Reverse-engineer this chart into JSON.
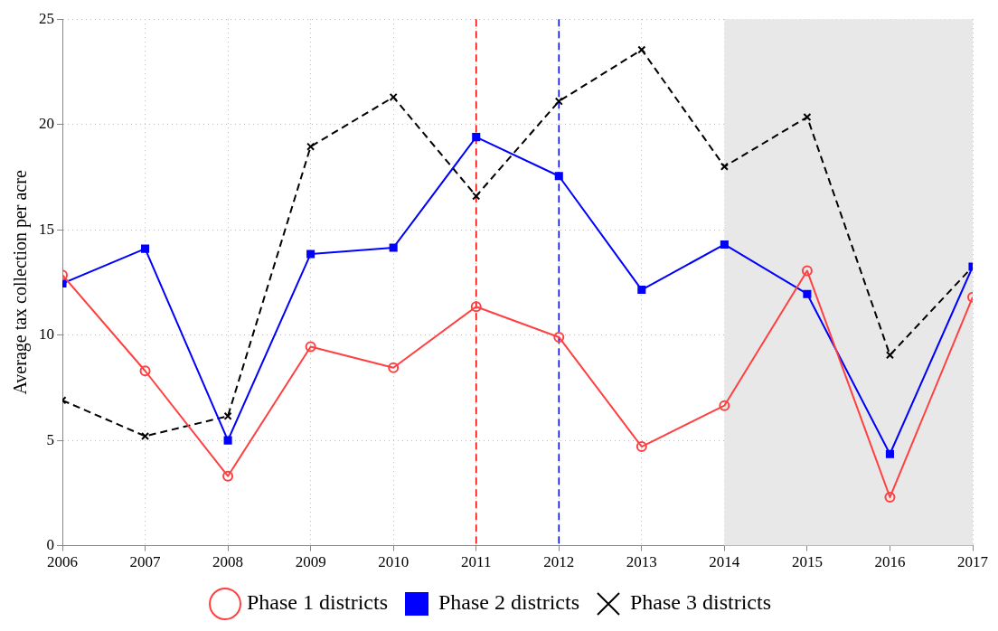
{
  "chart_data": {
    "type": "line",
    "ylabel": "Average tax collection per acre",
    "x": [
      2006,
      2007,
      2008,
      2009,
      2010,
      2011,
      2012,
      2013,
      2014,
      2015,
      2016,
      2017
    ],
    "xlim": [
      2006,
      2017
    ],
    "xticks": [
      2006,
      2007,
      2008,
      2009,
      2010,
      2011,
      2012,
      2013,
      2014,
      2015,
      2016,
      2017
    ],
    "ylim": [
      0,
      25
    ],
    "yticks": [
      0,
      5,
      10,
      15,
      20,
      25
    ],
    "grid": true,
    "legend": "bottom",
    "series": [
      {
        "name": "Phase 1 districts",
        "color": "#ff4040",
        "marker": "circle",
        "line_style": "solid",
        "values": [
          12.85,
          8.3,
          3.3,
          9.45,
          8.45,
          11.35,
          9.9,
          4.7,
          6.65,
          13.05,
          2.3,
          11.8
        ]
      },
      {
        "name": "Phase 2 districts",
        "color": "#0000ff",
        "marker": "square",
        "line_style": "solid",
        "values": [
          12.45,
          14.1,
          5.0,
          13.85,
          14.15,
          19.4,
          17.55,
          12.15,
          14.3,
          11.95,
          4.35,
          13.25
        ]
      },
      {
        "name": "Phase 3 districts",
        "color": "#000000",
        "marker": "cross",
        "line_style": "dashed",
        "values": [
          6.9,
          5.2,
          6.15,
          18.95,
          21.3,
          16.6,
          21.1,
          23.55,
          18.0,
          20.35,
          9.05,
          13.25
        ]
      }
    ],
    "ref_lines": [
      {
        "axis": "x",
        "value": 2011,
        "color": "#ff0000",
        "line_style": "dashed"
      },
      {
        "axis": "x",
        "value": 2012,
        "color": "#0000ff",
        "line_style": "dashed"
      }
    ],
    "bands": [
      {
        "axis": "x",
        "from": 2014,
        "to": 2017,
        "color": "#e8e8e8"
      }
    ]
  }
}
